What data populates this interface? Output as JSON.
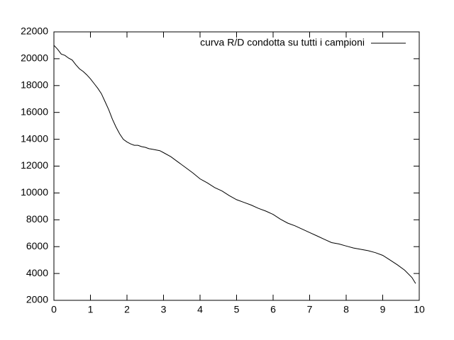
{
  "chart_data": {
    "type": "line",
    "x": [
      0,
      0.1,
      0.2,
      0.3,
      0.4,
      0.5,
      0.6,
      0.7,
      0.8,
      0.9,
      1.0,
      1.1,
      1.2,
      1.3,
      1.4,
      1.5,
      1.6,
      1.7,
      1.8,
      1.9,
      2.0,
      2.1,
      2.2,
      2.3,
      2.4,
      2.5,
      2.6,
      2.7,
      2.8,
      2.9,
      3.0,
      3.2,
      3.4,
      3.6,
      3.8,
      4.0,
      4.2,
      4.4,
      4.6,
      4.8,
      5.0,
      5.2,
      5.4,
      5.6,
      5.8,
      6.0,
      6.2,
      6.4,
      6.6,
      6.8,
      7.0,
      7.2,
      7.4,
      7.6,
      7.8,
      8.0,
      8.2,
      8.4,
      8.6,
      8.8,
      9.0,
      9.2,
      9.4,
      9.6,
      9.8,
      9.9
    ],
    "series": [
      {
        "name": "curva R/D condotta su tutti i campioni",
        "color": "#000000",
        "values": [
          21000,
          20700,
          20350,
          20250,
          20050,
          19900,
          19550,
          19250,
          19050,
          18800,
          18500,
          18150,
          17800,
          17400,
          16800,
          16200,
          15500,
          14900,
          14400,
          14000,
          13800,
          13650,
          13550,
          13550,
          13450,
          13400,
          13300,
          13250,
          13200,
          13150,
          13000,
          12700,
          12300,
          11900,
          11500,
          11050,
          10750,
          10400,
          10150,
          9800,
          9500,
          9300,
          9100,
          8850,
          8650,
          8400,
          8050,
          7750,
          7550,
          7300,
          7050,
          6800,
          6550,
          6300,
          6200,
          6050,
          5900,
          5800,
          5700,
          5550,
          5350,
          5000,
          4650,
          4250,
          3700,
          3250
        ]
      }
    ],
    "xlim": [
      0,
      10
    ],
    "xticks": [
      0,
      1,
      2,
      3,
      4,
      5,
      6,
      7,
      8,
      9,
      10
    ],
    "ylim": [
      2000,
      22000
    ],
    "yticks": [
      2000,
      4000,
      6000,
      8000,
      10000,
      12000,
      14000,
      16000,
      18000,
      20000,
      22000
    ],
    "legend": "top-right"
  }
}
